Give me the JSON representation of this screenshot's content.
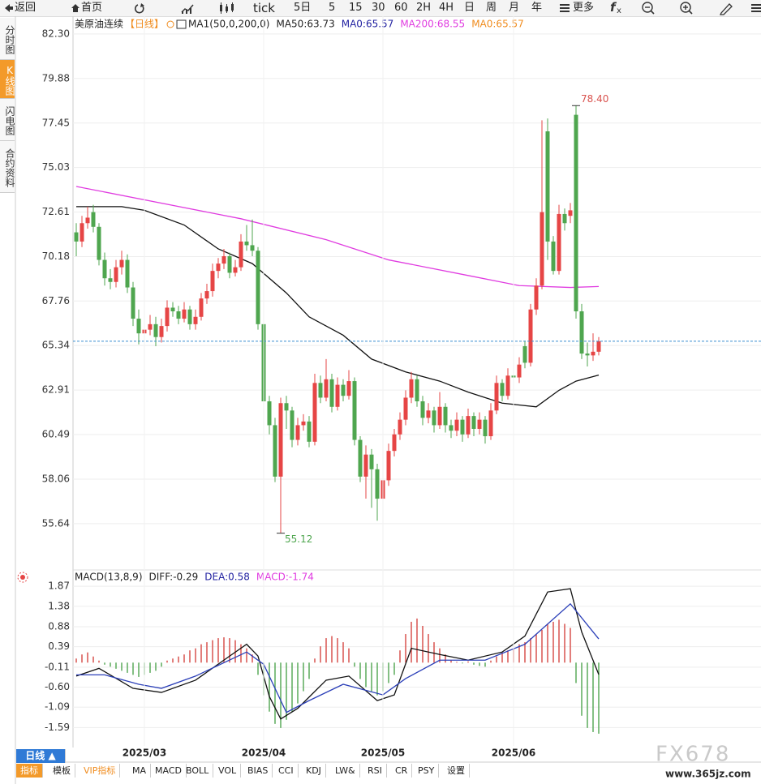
{
  "toolbar": {
    "back": "返回",
    "home": "首页",
    "items": [
      "tick",
      "5日",
      "5",
      "15",
      "30",
      "60",
      "2H",
      "4H",
      "日",
      "周",
      "月",
      "年"
    ],
    "more": "更多"
  },
  "sidebar": [
    "分时图",
    "K线图",
    "闪电图",
    "合约资料"
  ],
  "chart_data": [
    {
      "type": "candlestick",
      "title": "美原油连续",
      "period": "【日线】",
      "legend": [
        {
          "text": "MA1(50,0,200,0)",
          "color": "#222222"
        },
        {
          "text": "MA50:63.73",
          "color": "#222222"
        },
        {
          "text": "MA0:65.57",
          "color": "#1f1fa0"
        },
        {
          "text": "MA200:68.55",
          "color": "#e03ce0"
        },
        {
          "text": "MA0:65.57",
          "color": "#f08c1e"
        }
      ],
      "up_color": "#e64545",
      "down_color": "#4fa64f",
      "candles": [
        [
          71.5,
          72.0,
          70.2,
          71.0
        ],
        [
          71.0,
          72.4,
          70.7,
          72.0
        ],
        [
          72.0,
          72.9,
          71.7,
          72.3
        ],
        [
          72.6,
          73.0,
          71.5,
          71.8
        ],
        [
          71.8,
          72.0,
          69.7,
          70.0
        ],
        [
          70.0,
          70.4,
          68.6,
          69.0
        ],
        [
          69.0,
          69.5,
          68.4,
          68.8
        ],
        [
          68.8,
          70.0,
          68.5,
          69.6
        ],
        [
          69.6,
          70.5,
          69.2,
          70.0
        ],
        [
          70.0,
          70.3,
          68.2,
          68.5
        ],
        [
          68.5,
          68.8,
          66.4,
          66.8
        ],
        [
          66.8,
          67.3,
          65.4,
          66.0
        ],
        [
          66.0,
          66.7,
          65.6,
          66.2
        ],
        [
          66.2,
          67.0,
          65.9,
          66.5
        ],
        [
          66.5,
          66.9,
          65.3,
          65.8
        ],
        [
          65.8,
          66.8,
          65.5,
          66.4
        ],
        [
          66.4,
          67.8,
          66.1,
          67.4
        ],
        [
          67.4,
          67.7,
          66.9,
          67.2
        ],
        [
          67.2,
          67.5,
          66.5,
          66.8
        ],
        [
          66.8,
          67.7,
          66.6,
          67.3
        ],
        [
          67.3,
          67.5,
          66.2,
          66.5
        ],
        [
          66.5,
          67.3,
          66.2,
          66.9
        ],
        [
          66.9,
          68.2,
          66.7,
          67.9
        ],
        [
          67.9,
          68.7,
          67.6,
          68.3
        ],
        [
          68.3,
          69.8,
          68.0,
          69.4
        ],
        [
          69.4,
          70.1,
          69.0,
          69.8
        ],
        [
          69.8,
          70.6,
          69.5,
          70.2
        ],
        [
          70.2,
          70.4,
          69.0,
          69.3
        ],
        [
          69.3,
          70.0,
          69.1,
          69.6
        ],
        [
          69.6,
          71.4,
          69.4,
          71.0
        ],
        [
          71.0,
          71.9,
          70.5,
          70.8
        ],
        [
          70.8,
          72.2,
          70.2,
          70.5
        ],
        [
          70.5,
          70.7,
          66.2,
          66.5
        ],
        [
          66.5,
          66.8,
          62.0,
          62.3
        ],
        [
          62.3,
          62.6,
          60.5,
          61.0
        ],
        [
          61.0,
          61.4,
          57.9,
          58.2
        ],
        [
          58.2,
          62.5,
          55.12,
          62.2
        ],
        [
          62.2,
          62.6,
          60.8,
          61.8
        ],
        [
          61.8,
          62.0,
          59.8,
          60.2
        ],
        [
          60.2,
          61.4,
          59.9,
          61.0
        ],
        [
          61.0,
          61.6,
          60.7,
          61.2
        ],
        [
          61.2,
          61.5,
          59.8,
          60.1
        ],
        [
          60.1,
          63.8,
          59.9,
          63.3
        ],
        [
          63.3,
          63.7,
          62.2,
          62.5
        ],
        [
          62.5,
          64.6,
          62.3,
          63.5
        ],
        [
          63.5,
          63.8,
          61.7,
          62.0
        ],
        [
          62.0,
          63.6,
          61.8,
          63.2
        ],
        [
          63.2,
          63.5,
          62.3,
          62.6
        ],
        [
          62.6,
          64.0,
          62.4,
          63.4
        ],
        [
          63.4,
          63.6,
          59.9,
          60.2
        ],
        [
          60.2,
          60.4,
          57.9,
          58.2
        ],
        [
          58.2,
          59.9,
          57.0,
          59.4
        ],
        [
          59.4,
          59.7,
          56.5,
          58.6
        ],
        [
          58.6,
          58.9,
          55.8,
          57.0
        ],
        [
          57.0,
          58.4,
          56.6,
          58.0
        ],
        [
          58.0,
          60.0,
          57.7,
          59.6
        ],
        [
          59.6,
          60.8,
          59.3,
          60.5
        ],
        [
          60.5,
          61.7,
          60.2,
          61.3
        ],
        [
          61.3,
          62.9,
          61.0,
          62.5
        ],
        [
          62.5,
          63.9,
          62.2,
          63.5
        ],
        [
          63.5,
          63.7,
          62.0,
          62.3
        ],
        [
          62.3,
          62.6,
          61.0,
          61.4
        ],
        [
          61.4,
          62.2,
          61.1,
          61.8
        ],
        [
          61.8,
          62.0,
          60.6,
          61.0
        ],
        [
          61.0,
          62.8,
          60.8,
          62.0
        ],
        [
          62.0,
          62.2,
          60.6,
          61.0
        ],
        [
          61.0,
          61.3,
          60.3,
          60.7
        ],
        [
          60.7,
          61.7,
          60.4,
          61.3
        ],
        [
          61.3,
          61.5,
          60.1,
          60.5
        ],
        [
          60.5,
          61.9,
          60.3,
          61.5
        ],
        [
          61.5,
          61.7,
          60.4,
          60.8
        ],
        [
          60.8,
          61.7,
          60.5,
          61.3
        ],
        [
          61.3,
          61.5,
          60.0,
          60.4
        ],
        [
          60.4,
          62.2,
          60.2,
          61.8
        ],
        [
          61.8,
          63.7,
          61.6,
          63.3
        ],
        [
          63.3,
          63.5,
          62.3,
          62.6
        ],
        [
          62.6,
          64.1,
          62.4,
          63.7
        ],
        [
          63.7,
          64.2,
          63.1,
          63.6
        ],
        [
          63.6,
          64.7,
          63.3,
          64.3
        ],
        [
          65.3,
          65.6,
          64.1,
          64.4
        ],
        [
          64.4,
          67.6,
          64.2,
          67.3
        ],
        [
          67.3,
          69.0,
          67.0,
          68.6
        ],
        [
          68.6,
          77.6,
          68.4,
          72.6
        ],
        [
          77.0,
          77.7,
          70.0,
          71.0
        ],
        [
          71.0,
          71.3,
          69.2,
          69.4
        ],
        [
          69.4,
          73.0,
          69.2,
          72.5
        ],
        [
          72.5,
          72.8,
          71.6,
          72.0
        ],
        [
          72.4,
          73.1,
          72.0,
          72.7
        ],
        [
          77.9,
          78.4,
          66.8,
          67.2
        ],
        [
          67.2,
          67.6,
          64.6,
          64.9
        ],
        [
          64.9,
          65.5,
          64.2,
          64.8
        ],
        [
          64.8,
          66.0,
          64.5,
          65.0
        ],
        [
          65.0,
          65.8,
          64.8,
          65.57
        ]
      ],
      "overlays": [
        {
          "name": "MA50",
          "color": "#111111",
          "x": [
            0,
            8,
            12,
            19,
            25,
            31,
            37,
            41,
            47,
            52,
            58,
            64,
            69,
            75,
            81,
            85,
            88,
            92
          ],
          "values": [
            72.9,
            72.9,
            72.7,
            71.9,
            70.6,
            69.8,
            68.2,
            66.9,
            65.9,
            64.6,
            63.9,
            63.4,
            62.8,
            62.2,
            62.0,
            62.9,
            63.4,
            63.73
          ]
        },
        {
          "name": "MA200",
          "color": "#e03ce0",
          "x": [
            0,
            29,
            44,
            55,
            69,
            78,
            87,
            92
          ],
          "values": [
            74.0,
            72.24,
            71.1,
            70.0,
            69.15,
            68.6,
            68.5,
            68.55
          ]
        }
      ],
      "high_label": "78.40",
      "low_label": "55.12",
      "ylim": [
        53.25,
        83.18
      ],
      "yticks": [
        {
          "value": 82.3,
          "label": "82.30"
        },
        {
          "value": 79.88,
          "label": "79.88"
        },
        {
          "value": 77.45,
          "label": "77.45"
        },
        {
          "value": 75.03,
          "label": "75.03"
        },
        {
          "value": 72.61,
          "label": "72.61"
        },
        {
          "value": 70.18,
          "label": "70.18"
        },
        {
          "value": 67.76,
          "label": "67.76"
        },
        {
          "value": 65.34,
          "label": "65.34"
        },
        {
          "value": 62.91,
          "label": "62.91"
        },
        {
          "value": 60.49,
          "label": "60.49"
        },
        {
          "value": 58.06,
          "label": "58.06"
        },
        {
          "value": 55.64,
          "label": "55.64"
        }
      ],
      "grid": true
    },
    {
      "type": "macd",
      "legend": [
        {
          "text": "MACD(13,8,9)",
          "color": "#222222"
        },
        {
          "text": "DIFF:-0.29",
          "color": "#222222"
        },
        {
          "text": "DEA:0.58",
          "color": "#1f1fa0"
        },
        {
          "text": "MACD:-1.74",
          "color": "#e03ce0"
        }
      ],
      "categories": [
        null,
        null,
        null,
        null,
        null,
        null,
        null,
        null,
        null,
        null,
        null,
        null,
        "2025/03",
        null,
        null,
        null,
        null,
        null,
        null,
        null,
        null,
        null,
        null,
        null,
        null,
        null,
        null,
        null,
        null,
        null,
        null,
        null,
        null,
        "2025/04",
        null,
        null,
        null,
        null,
        null,
        null,
        null,
        null,
        null,
        null,
        null,
        null,
        null,
        null,
        null,
        null,
        null,
        null,
        null,
        null,
        "2025/05",
        null,
        null,
        null,
        null,
        null,
        null,
        null,
        null,
        null,
        null,
        null,
        null,
        null,
        null,
        null,
        null,
        null,
        null,
        null,
        null,
        null,
        null,
        "2025/06",
        null,
        null,
        null,
        null,
        null,
        null,
        null,
        null,
        null,
        null,
        null,
        null,
        null,
        null,
        null
      ],
      "histogram": {
        "up_color": "#d9534f",
        "down_color": "#5aaa5a",
        "values": [
          0.1,
          0.2,
          0.25,
          0.15,
          0.05,
          -0.05,
          -0.1,
          -0.15,
          -0.2,
          -0.25,
          -0.3,
          -0.35,
          -0.3,
          -0.25,
          -0.2,
          -0.1,
          0.05,
          0.1,
          0.15,
          0.2,
          0.3,
          0.35,
          0.45,
          0.5,
          0.55,
          0.6,
          0.62,
          0.6,
          0.55,
          0.45,
          0.35,
          0.2,
          -0.3,
          -0.8,
          -1.2,
          -1.5,
          -1.6,
          -1.4,
          -1.2,
          -1.0,
          -0.7,
          -0.4,
          0.1,
          0.4,
          0.6,
          0.65,
          0.6,
          0.5,
          0.35,
          -0.1,
          -0.4,
          -0.6,
          -0.7,
          -0.8,
          -0.7,
          -0.5,
          -0.3,
          0.3,
          0.7,
          1.0,
          1.08,
          0.9,
          0.7,
          0.5,
          0.35,
          0.2,
          0.05,
          0.02,
          -0.02,
          0.03,
          -0.05,
          -0.08,
          -0.1,
          0.05,
          0.15,
          0.25,
          0.3,
          0.35,
          0.45,
          0.5,
          0.6,
          0.7,
          0.8,
          0.95,
          1.0,
          1.05,
          0.95,
          0.85,
          -0.5,
          -1.3,
          -1.6,
          -1.7,
          -1.74
        ]
      },
      "series": [
        {
          "name": "DIFF",
          "color": "#111111",
          "x": [
            0,
            4,
            10,
            15,
            21,
            27,
            30,
            32,
            34,
            36,
            39,
            44,
            48,
            53,
            56,
            59,
            64,
            69,
            75,
            79,
            83,
            87,
            89,
            92
          ],
          "values": [
            -0.33,
            -0.14,
            -0.63,
            -0.73,
            -0.43,
            0.16,
            0.45,
            0.16,
            -0.83,
            -1.38,
            -1.12,
            -0.43,
            -0.33,
            -0.93,
            -0.79,
            0.35,
            0.2,
            0.06,
            0.26,
            0.65,
            1.73,
            1.81,
            0.75,
            -0.29
          ]
        },
        {
          "name": "DEA",
          "color": "#2b3fb8",
          "x": [
            0,
            5,
            11,
            15,
            21,
            30,
            33,
            37,
            41,
            47,
            54,
            58,
            64,
            72,
            79,
            87,
            92
          ],
          "values": [
            -0.3,
            -0.3,
            -0.53,
            -0.63,
            -0.33,
            0.26,
            -0.04,
            -1.22,
            -0.93,
            -0.53,
            -0.79,
            -0.39,
            0.06,
            0.06,
            0.45,
            1.44,
            0.58
          ]
        }
      ],
      "ylim": [
        -1.94,
        2.17
      ],
      "yticks": [
        1.87,
        1.38,
        0.88,
        0.39,
        -0.11,
        {
          "value": -0.6,
          "label": "-0.60"
        },
        -1.09,
        -1.59
      ]
    }
  ],
  "tabs": {
    "period": "日线 ▲",
    "items": [
      "指标",
      "模板",
      "VIP指标",
      "MA",
      "MACD",
      "BOLL",
      "VOL",
      "BIAS",
      "CCI",
      "KDJ",
      "LW&",
      "RSI",
      "CR",
      "PSY",
      "设置"
    ]
  },
  "watermark": {
    "logo": "FX678",
    "url": "www.365jz.com"
  }
}
